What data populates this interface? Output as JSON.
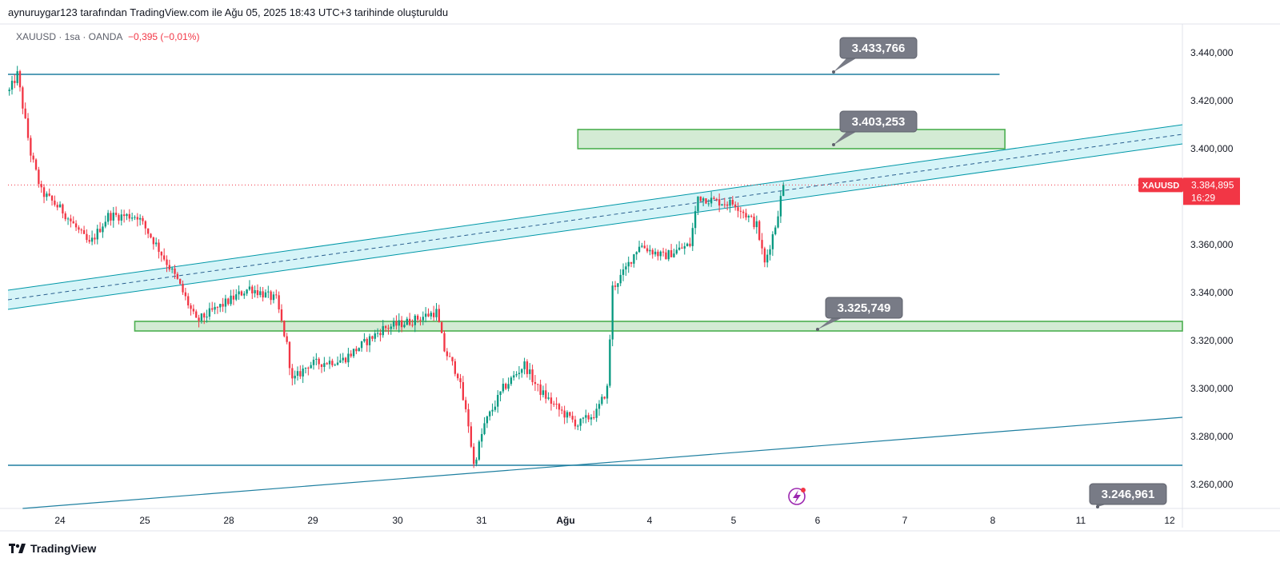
{
  "header": {
    "credit": "aynuruygar123 tarafından TradingView.com ile Ağu 05, 2025 18:43 UTC+3 tarihinde oluşturuldu",
    "symbol_info": "XAUUSD · 1sa · OANDA",
    "change": "−0,395 (−0,01%)"
  },
  "price_tag": {
    "symbol": "XAUUSD",
    "price": "3.384,895",
    "countdown": "16:29"
  },
  "footer": {
    "brand": "TradingView"
  },
  "colors": {
    "up": "#089981",
    "down": "#f23645",
    "channel": "#0097a7",
    "channel_fill": "#b2ebf2",
    "zone_stroke": "#4caf50",
    "zone_fill": "#c8e6c9",
    "callout": "#787b86"
  },
  "icons": [
    "lightning-icon",
    "tradingview-logo-icon"
  ],
  "chart_data": {
    "type": "candlestick",
    "title": "XAUUSD · 1sa · OANDA",
    "x_ticks": [
      "24",
      "25",
      "28",
      "29",
      "30",
      "31",
      "Ağu",
      "4",
      "5",
      "6",
      "7",
      "8",
      "11",
      "12"
    ],
    "y_ticks": [
      "3.260,000",
      "3.280,000",
      "3.300,000",
      "3.320,000",
      "3.340,000",
      "3.360,000",
      "3.380,000",
      "3.400,000",
      "3.420,000",
      "3.440,000"
    ],
    "y_tick_values": [
      3260,
      3280,
      3300,
      3320,
      3340,
      3360,
      3380,
      3400,
      3420,
      3440
    ],
    "ylim": [
      3250,
      3452
    ],
    "last_price": 3384.895,
    "path_anchors": [
      {
        "x": 0,
        "y": 3424
      },
      {
        "x": 3,
        "y": 3431
      },
      {
        "x": 8,
        "y": 3398
      },
      {
        "x": 12,
        "y": 3382
      },
      {
        "x": 20,
        "y": 3374
      },
      {
        "x": 30,
        "y": 3360
      },
      {
        "x": 37,
        "y": 3372
      },
      {
        "x": 48,
        "y": 3372
      },
      {
        "x": 55,
        "y": 3360
      },
      {
        "x": 63,
        "y": 3345
      },
      {
        "x": 70,
        "y": 3328
      },
      {
        "x": 80,
        "y": 3335
      },
      {
        "x": 90,
        "y": 3342
      },
      {
        "x": 100,
        "y": 3337
      },
      {
        "x": 104,
        "y": 3318
      },
      {
        "x": 106,
        "y": 3303
      },
      {
        "x": 112,
        "y": 3310
      },
      {
        "x": 125,
        "y": 3312
      },
      {
        "x": 140,
        "y": 3325
      },
      {
        "x": 150,
        "y": 3328
      },
      {
        "x": 160,
        "y": 3332
      },
      {
        "x": 163,
        "y": 3316
      },
      {
        "x": 168,
        "y": 3306
      },
      {
        "x": 172,
        "y": 3285
      },
      {
        "x": 174,
        "y": 3268
      },
      {
        "x": 178,
        "y": 3285
      },
      {
        "x": 185,
        "y": 3300
      },
      {
        "x": 193,
        "y": 3310
      },
      {
        "x": 198,
        "y": 3300
      },
      {
        "x": 205,
        "y": 3292
      },
      {
        "x": 213,
        "y": 3285
      },
      {
        "x": 220,
        "y": 3290
      },
      {
        "x": 224,
        "y": 3300
      },
      {
        "x": 226,
        "y": 3342
      },
      {
        "x": 230,
        "y": 3348
      },
      {
        "x": 236,
        "y": 3360
      },
      {
        "x": 245,
        "y": 3355
      },
      {
        "x": 255,
        "y": 3360
      },
      {
        "x": 258,
        "y": 3380
      },
      {
        "x": 265,
        "y": 3378
      },
      {
        "x": 272,
        "y": 3377
      },
      {
        "x": 280,
        "y": 3368
      },
      {
        "x": 283,
        "y": 3352
      },
      {
        "x": 287,
        "y": 3368
      },
      {
        "x": 290,
        "y": 3384.9
      }
    ],
    "levels": [
      {
        "label": "3.433,766",
        "value": 3433.766
      },
      {
        "label": "3.403,253",
        "value": 3403.253
      },
      {
        "label": "3.325,749",
        "value": 3325.749
      },
      {
        "label": "3.246,961",
        "value": 3246.961
      }
    ],
    "zones": [
      {
        "low": 3400,
        "high": 3408,
        "start": 213,
        "end": 373
      },
      {
        "low": 3324,
        "high": 3328,
        "start": 47,
        "end": 440
      }
    ],
    "horizontal_lines": [
      {
        "value": 3431,
        "start": 0,
        "end": 371
      },
      {
        "value": 3268,
        "start": 0,
        "end": 440
      }
    ],
    "channel": {
      "start_x": 0,
      "end_x": 440,
      "start_center": 3337,
      "end_center": 3406,
      "half_width": 4
    },
    "trendline": {
      "start_x": 5,
      "start_value": 3250,
      "end_x": 440,
      "end_value": 3288
    }
  }
}
